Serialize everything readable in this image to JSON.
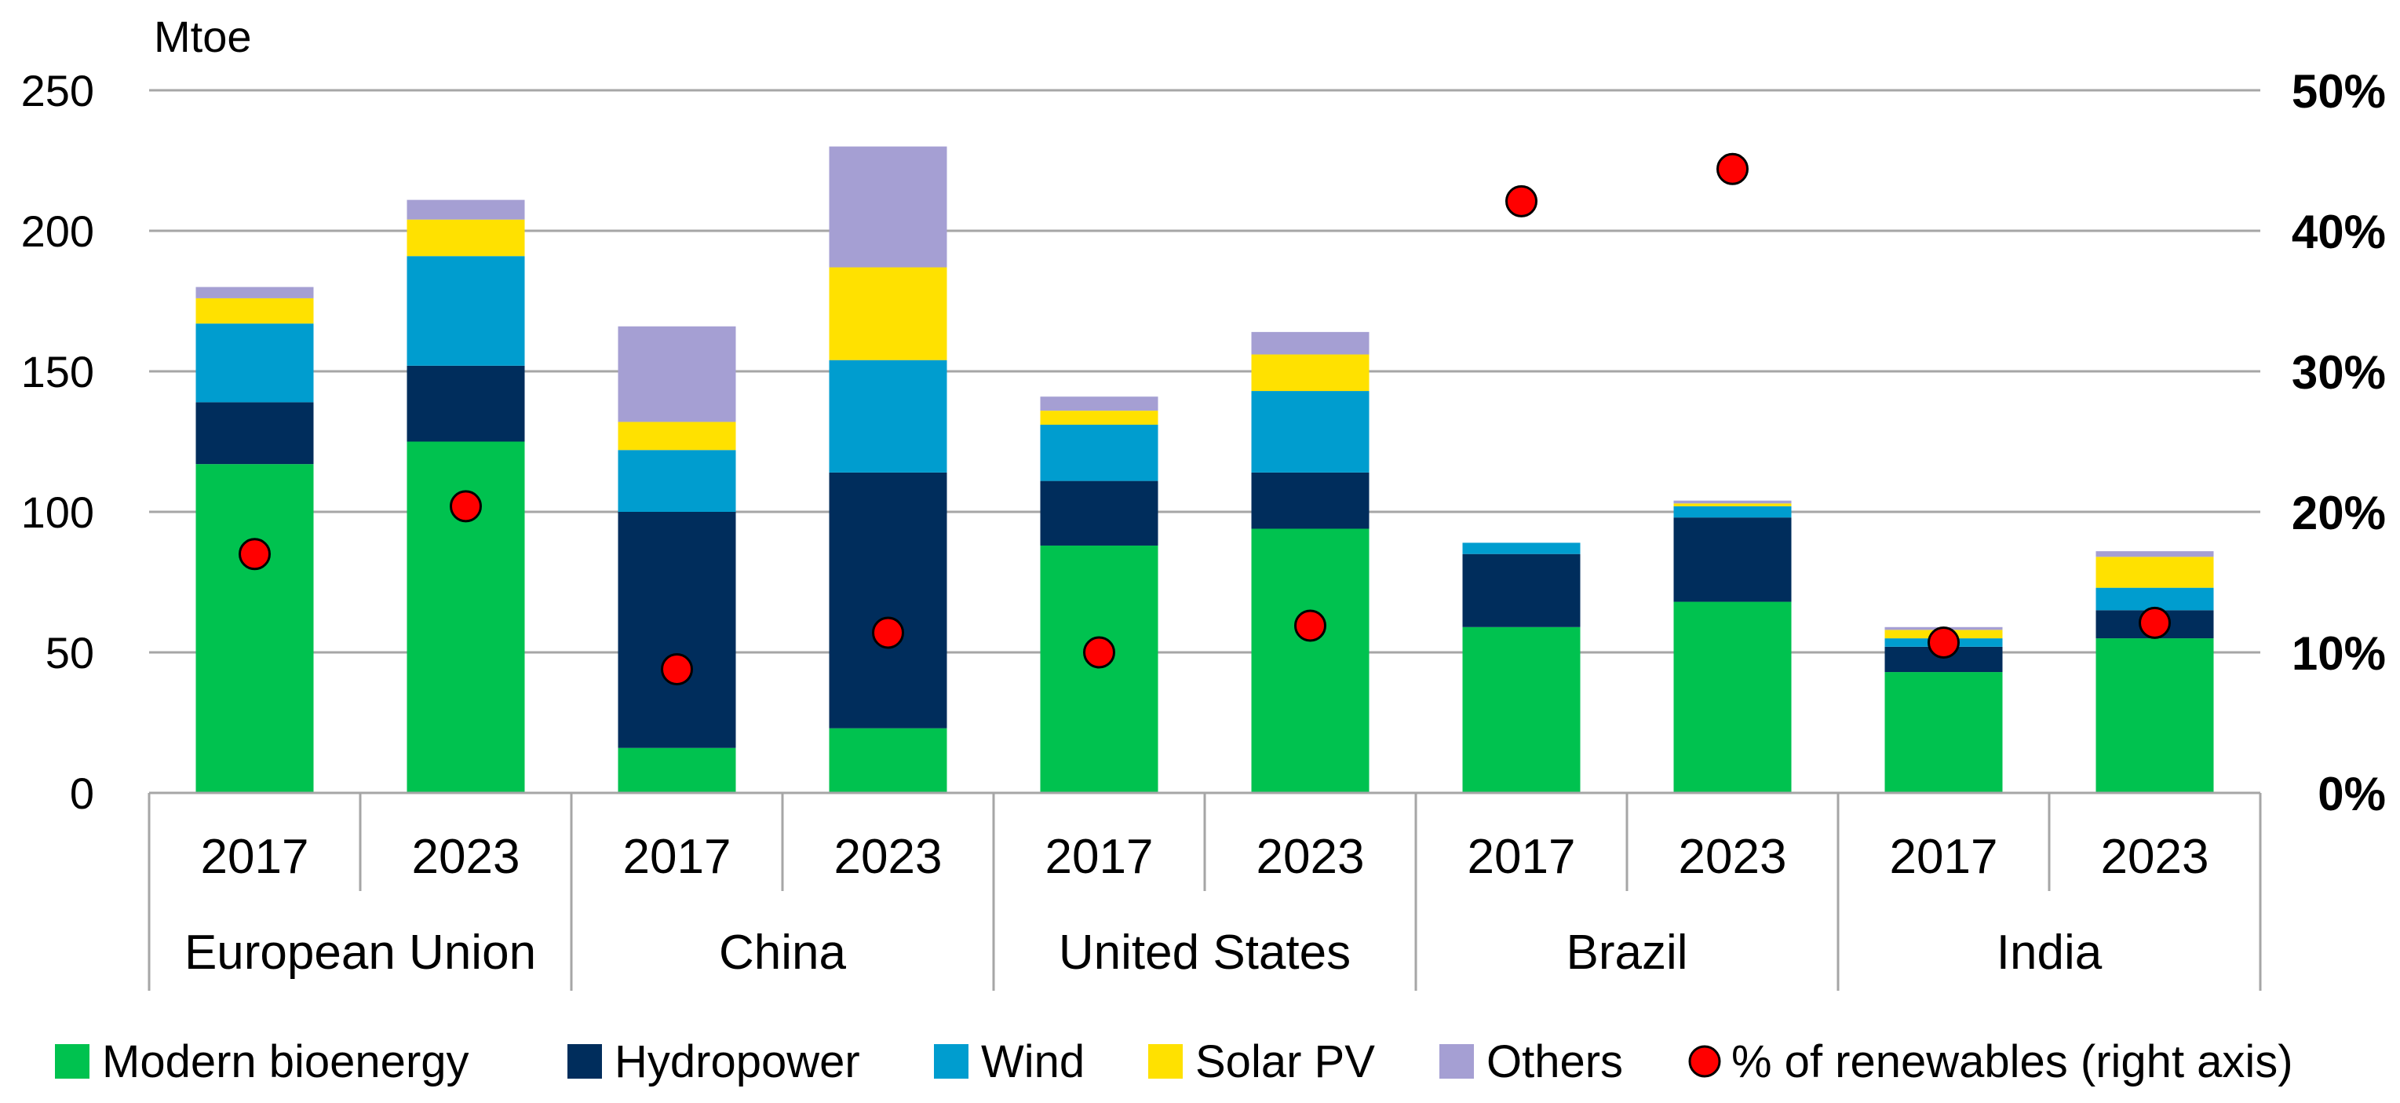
{
  "chart_data": {
    "type": "bar",
    "stacked": true,
    "unit_label": "Mtoe",
    "y_left": {
      "min": 0,
      "max": 250,
      "ticks": [
        0,
        50,
        100,
        150,
        200,
        250
      ]
    },
    "y_right": {
      "min": 0,
      "max": 50,
      "ticks": [
        "0%",
        "10%",
        "20%",
        "30%",
        "40%",
        "50%"
      ]
    },
    "groups": [
      "European Union",
      "China",
      "United States",
      "Brazil",
      "India"
    ],
    "years": [
      "2017",
      "2023"
    ],
    "series": [
      {
        "name": "Modern bioenergy",
        "color": "#00c24f",
        "values": [
          117,
          125,
          16,
          23,
          88,
          94,
          59,
          68,
          43,
          55
        ]
      },
      {
        "name": "Hydropower",
        "color": "#002d5c",
        "values": [
          22,
          27,
          84,
          91,
          23,
          20,
          26,
          30,
          9,
          10
        ]
      },
      {
        "name": "Wind",
        "color": "#009dcf",
        "values": [
          28,
          39,
          22,
          40,
          20,
          29,
          4,
          4,
          3,
          8
        ]
      },
      {
        "name": "Solar PV",
        "color": "#ffe100",
        "values": [
          9,
          13,
          10,
          33,
          5,
          13,
          0,
          1,
          3,
          11
        ]
      },
      {
        "name": "Others",
        "color": "#a59fd3",
        "values": [
          4,
          7,
          34,
          43,
          5,
          8,
          0,
          1,
          1,
          2
        ]
      }
    ],
    "line_series": {
      "name": "% of renewables (right axis)",
      "color": "#ff0000",
      "values": [
        17.0,
        20.4,
        8.8,
        11.4,
        10.0,
        11.9,
        42.1,
        44.4,
        10.7,
        12.1
      ]
    },
    "legend_position": "bottom"
  }
}
